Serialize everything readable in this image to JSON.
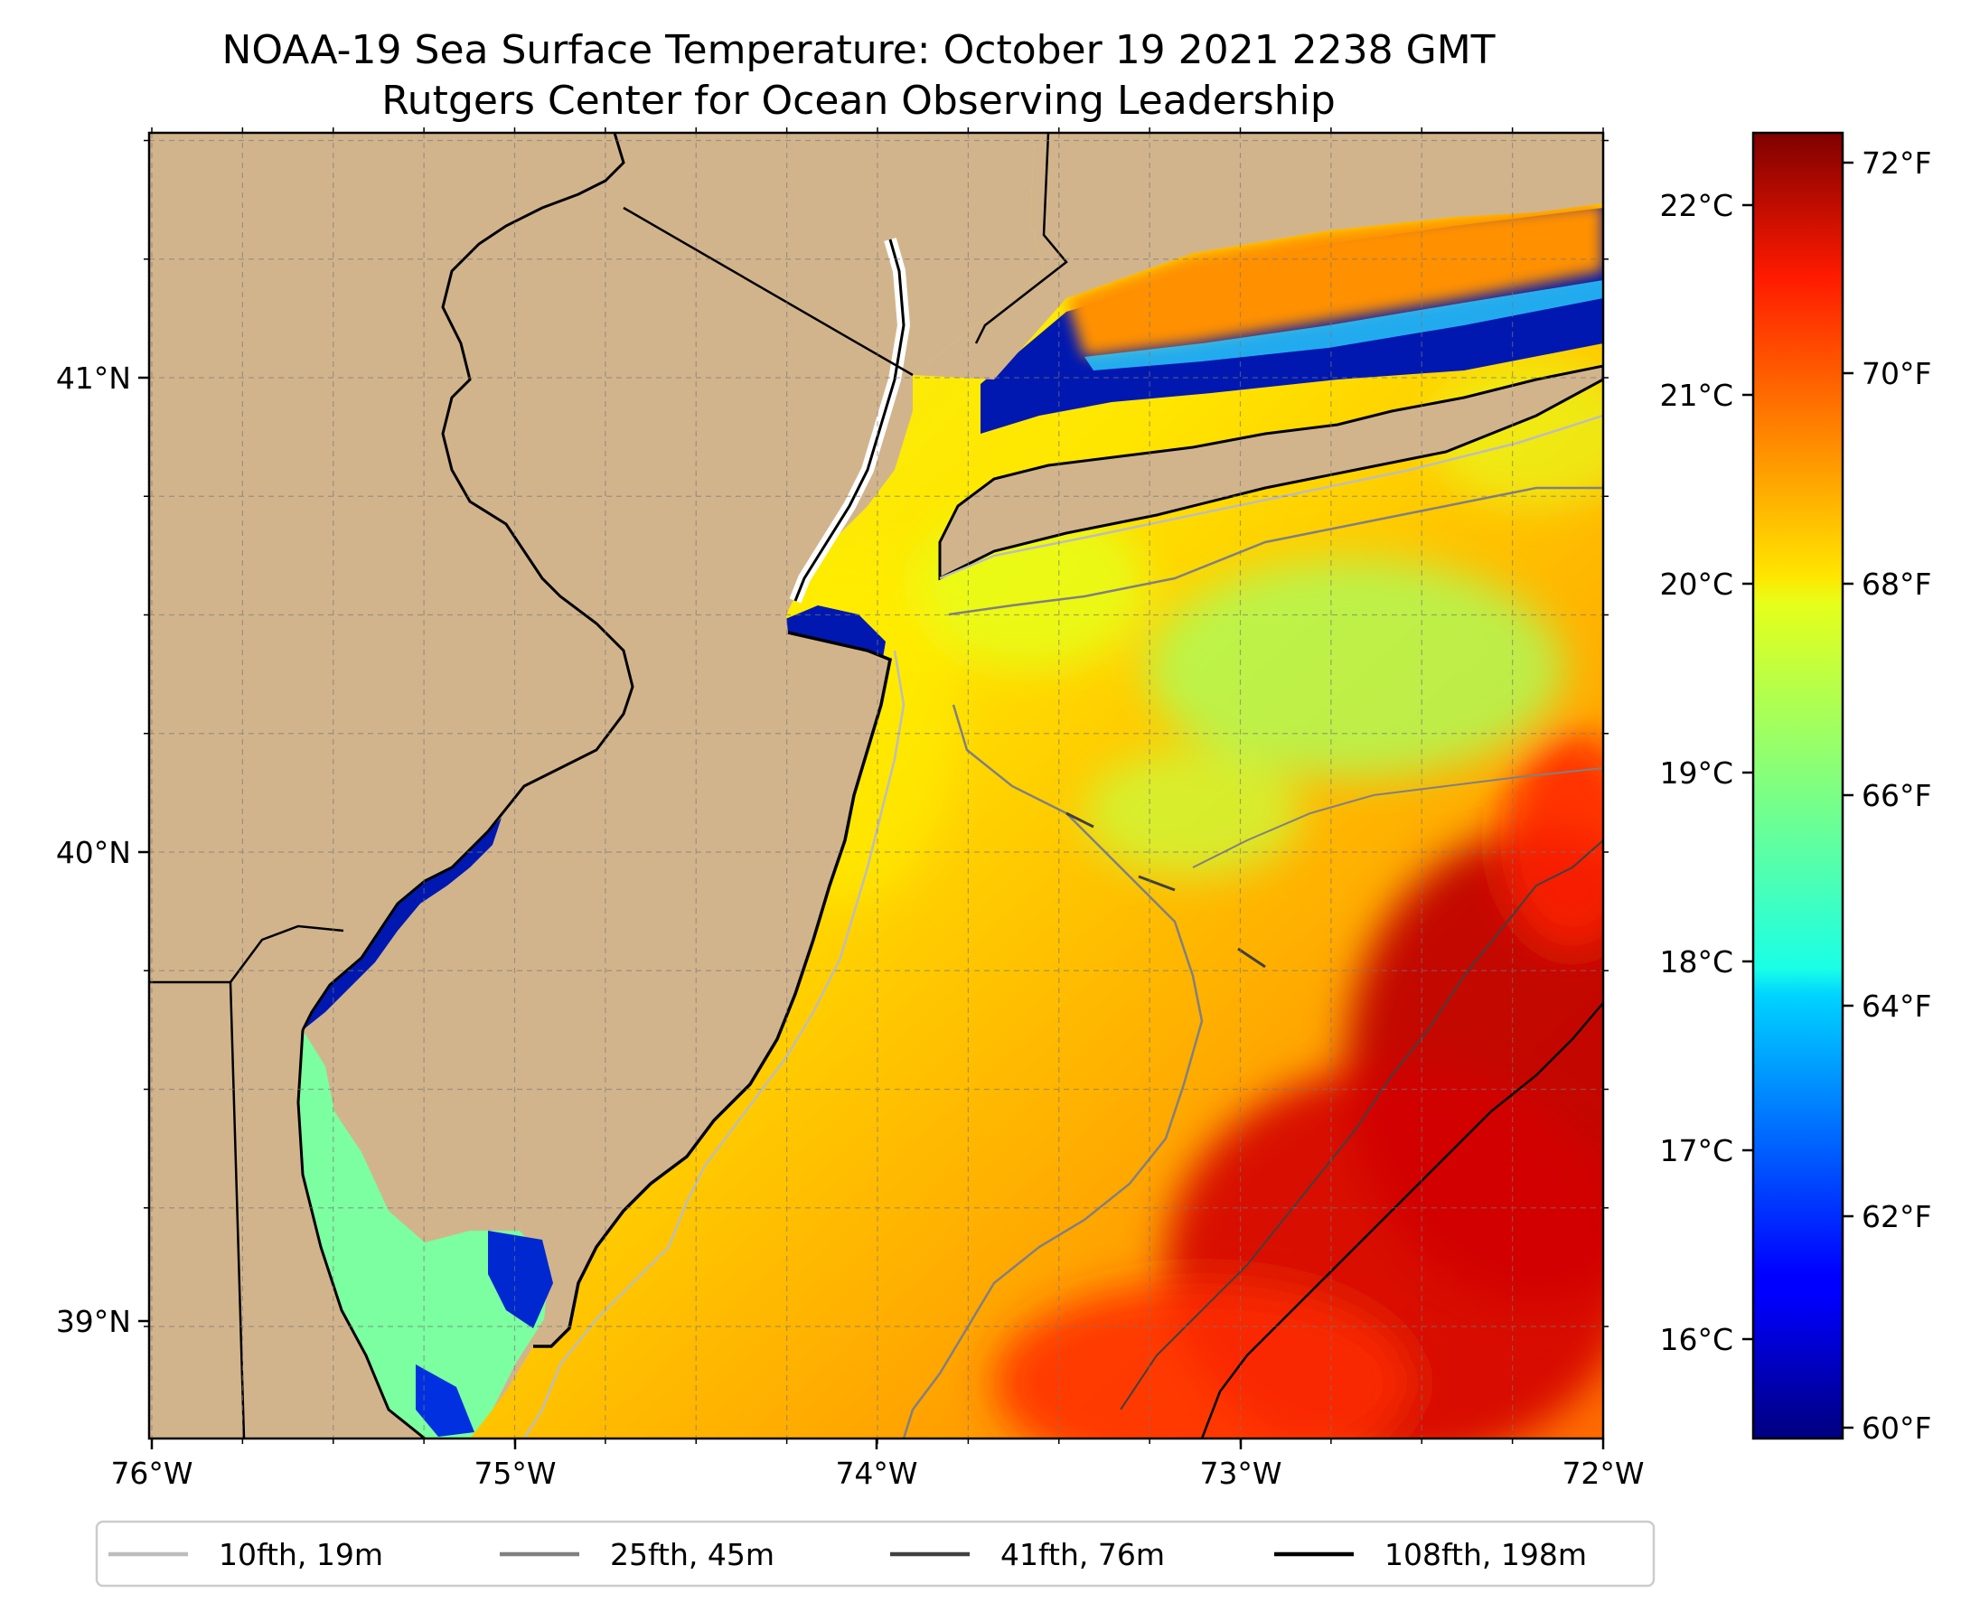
{
  "title": {
    "line1": "NOAA-19 Sea Surface Temperature: October 19 2021 2238 GMT",
    "line2": "Rutgers Center for Ocean Observing Leadership"
  },
  "map": {
    "lon_ticks": [
      "76°W",
      "75°W",
      "74°W",
      "73°W",
      "72°W"
    ],
    "lat_ticks": [
      "41°N",
      "40°N",
      "39°N"
    ],
    "land_color": "#d2b48c",
    "gridlines": true
  },
  "colorbar": {
    "colormap": "jet",
    "celsius_ticks": [
      "22°C",
      "21°C",
      "20°C",
      "19°C",
      "18°C",
      "17°C",
      "16°C"
    ],
    "fahrenheit_ticks": [
      "72°F",
      "70°F",
      "68°F",
      "66°F",
      "64°F",
      "62°F",
      "60°F"
    ]
  },
  "legend": {
    "items": [
      {
        "label": "10fth, 19m",
        "color": "#bdbdbd"
      },
      {
        "label": "25fth, 45m",
        "color": "#808080"
      },
      {
        "label": "41fth, 76m",
        "color": "#404040"
      },
      {
        "label": "108fth, 198m",
        "color": "#000000"
      }
    ]
  }
}
